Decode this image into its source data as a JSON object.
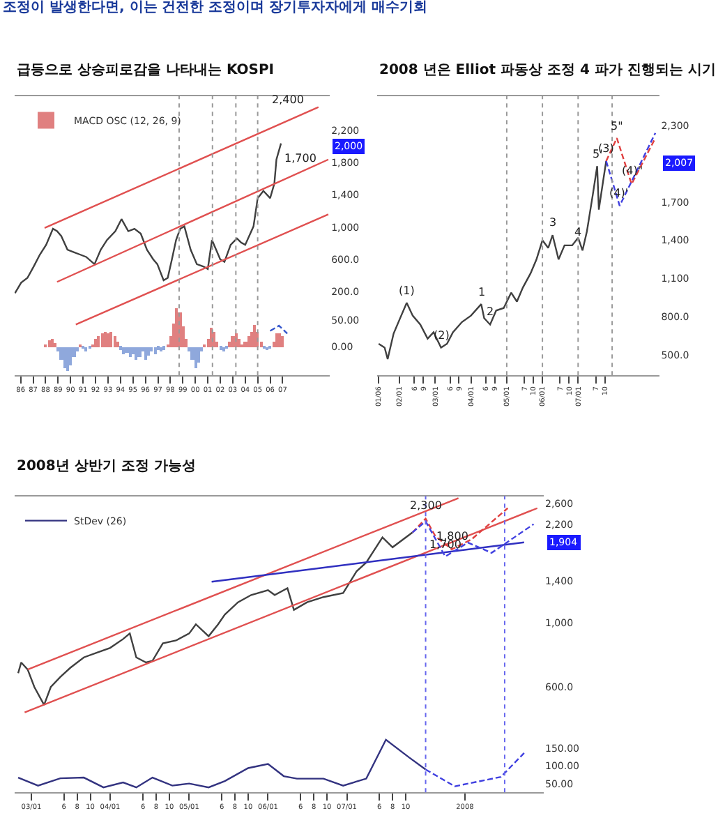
{
  "chart_data": [
    {
      "type": "line",
      "title": "급등으로 상승피로감을 나타내는 KOSPI",
      "annotations": [
        "조정이 발생한다면, 이는 건전한 조정이며 장기투자자에게 매수기회",
        {
          "text": "2,400",
          "x": "2007-11-15",
          "y": 2420
        },
        {
          "text": "1,700",
          "x": "2008-12-01",
          "y": 1700
        },
        {
          "text": "2,000",
          "y": 2000
        }
      ],
      "series": [
        {
          "color": "#404040",
          "x": [
            "1986-01-15",
            "1986-07-15",
            "1987-01-15",
            "1987-07-15",
            "1988-01-15",
            "1988-07-15",
            "1989-02-01",
            "1989-06-01",
            "1989-10-01",
            "1990-04-01",
            "1990-10-01",
            "1991-04-01",
            "1991-10-01",
            "1992-06-01",
            "1992-12-01",
            "1993-06-01",
            "1994-02-01",
            "1994-08-01",
            "1995-02-15",
            "1995-08-15",
            "1996-02-15",
            "1996-08-15",
            "1997-02-15",
            "1997-06-15",
            "1997-12-15",
            "1998-04-15",
            "1998-08-15",
            "1998-12-15",
            "1999-04-15",
            "1999-08-15",
            "2000-02-15",
            "2000-08-15",
            "2001-03-01",
            "2001-07-01",
            "2001-11-01",
            "2002-03-01",
            "2002-07-01",
            "2002-11-01",
            "2003-05-01",
            "2003-11-01",
            "2004-03-01",
            "2004-07-01",
            "2005-03-01",
            "2005-07-01",
            "2005-12-15",
            "2006-07-01",
            "2006-11-01",
            "2007-01-01",
            "2007-05-15"
          ],
          "values": [
            180,
            310,
            370,
            510,
            660,
            780,
            980,
            950,
            890,
            720,
            690,
            660,
            630,
            540,
            720,
            840,
            950,
            1100,
            950,
            980,
            920,
            720,
            600,
            540,
            340,
            370,
            600,
            840,
            980,
            1010,
            720,
            540,
            510,
            480,
            840,
            720,
            600,
            570,
            780,
            860,
            810,
            780,
            1010,
            1360,
            1450,
            1360,
            1540,
            1840,
            2040
          ]
        },
        {
          "color": "#e05050",
          "x": [
            "1988-06-01",
            "2010-05-15"
          ],
          "values": [
            990,
            2490
          ]
        },
        {
          "color": "#e05050",
          "x": [
            "1989-06-01",
            "2011-03-01"
          ],
          "values": [
            320,
            1840
          ]
        },
        {
          "color": "#e05050",
          "x": [
            "1990-12-01",
            "2011-03-01"
          ],
          "values": [
            -210,
            1160
          ]
        }
      ],
      "xlim": [
        "1986-01-01",
        "2011-04-15"
      ],
      "ylim": [
        -840,
        2630
      ],
      "yticks": [
        {
          "value": 200,
          "label": "200.0"
        },
        {
          "value": 600,
          "label": "600.0"
        },
        {
          "value": 1000,
          "label": "1,000"
        },
        {
          "value": 1400,
          "label": "1,400"
        },
        {
          "value": 1800,
          "label": "1,800"
        },
        {
          "value": 2200,
          "label": "2,200"
        }
      ],
      "tick_labels": "y",
      "ref_lines": [
        {
          "axis": "x",
          "value": "1999-03-15",
          "color": "#999999",
          "line_style": "dotted"
        },
        {
          "axis": "x",
          "value": "2001-11-15",
          "color": "#999999",
          "line_style": "dotted"
        },
        {
          "axis": "x",
          "value": "2003-10-01",
          "color": "#999999",
          "line_style": "dotted"
        },
        {
          "axis": "x",
          "value": "2005-07-01",
          "color": "#999999",
          "line_style": "dotted"
        }
      ]
    },
    {
      "type": "bar",
      "legend": "top left",
      "series": [
        {
          "name": "MACD OSC (12, 26, 9)",
          "x": [
            "1988-07-01",
            "1988-10-01",
            "1989-01-01",
            "1989-04-01",
            "1989-07-01",
            "1989-10-01",
            "1990-01-01",
            "1990-04-01",
            "1990-07-01",
            "1990-10-01",
            "1991-01-01",
            "1991-04-01",
            "1991-07-01",
            "1991-10-01",
            "1992-01-01",
            "1992-04-01",
            "1992-07-01",
            "1992-10-01",
            "1993-01-01",
            "1993-04-01",
            "1993-07-01",
            "1993-10-01",
            "1994-01-01",
            "1994-04-01",
            "1994-07-01",
            "1994-10-01",
            "1995-01-01",
            "1995-04-01",
            "1995-07-01",
            "1995-10-01",
            "1996-01-01",
            "1996-04-01",
            "1996-07-01",
            "1996-10-01",
            "1997-01-01",
            "1997-04-01",
            "1997-07-01",
            "1997-10-01",
            "1998-01-01",
            "1998-04-01",
            "1998-07-01",
            "1998-10-01",
            "1999-01-01",
            "1999-04-01",
            "1999-07-01",
            "1999-10-01",
            "2000-01-01",
            "2000-04-01",
            "2000-07-01",
            "2000-10-01",
            "2001-01-01",
            "2001-04-01",
            "2001-07-01",
            "2001-10-01",
            "2002-01-01",
            "2002-04-01",
            "2002-07-01",
            "2002-10-01",
            "2003-01-01",
            "2003-04-01",
            "2003-07-01",
            "2003-10-01",
            "2004-01-01",
            "2004-04-01",
            "2004-07-01",
            "2004-10-01",
            "2005-01-01",
            "2005-04-01",
            "2005-07-01",
            "2005-10-01",
            "2006-01-01",
            "2006-04-01",
            "2006-07-01",
            "2006-10-01",
            "2007-01-01",
            "2007-04-01",
            "2007-07-01"
          ],
          "values": [
            5,
            12,
            15,
            8,
            -10,
            -25,
            -40,
            -45,
            -35,
            -20,
            -8,
            3,
            -3,
            -8,
            -3,
            5,
            15,
            22,
            25,
            30,
            25,
            28,
            20,
            10,
            -5,
            -15,
            -12,
            -20,
            -15,
            -25,
            -20,
            -10,
            -25,
            -18,
            -10,
            -15,
            -5,
            -10,
            -5,
            3,
            20,
            45,
            73,
            65,
            40,
            15,
            -10,
            -25,
            -41,
            -30,
            -10,
            5,
            15,
            36,
            30,
            10,
            -5,
            -10,
            -3,
            10,
            20,
            25,
            15,
            3,
            10,
            20,
            30,
            41,
            30,
            10,
            -3,
            -6,
            -4,
            10,
            25,
            27,
            20
          ],
          "colors": [
            "#e08080",
            "#e08080",
            "#e08080",
            "#e08080",
            "#8fa8dc",
            "#8fa8dc",
            "#8fa8dc",
            "#8fa8dc",
            "#8fa8dc",
            "#8fa8dc",
            "#8fa8dc",
            "#e08080",
            "#8fa8dc",
            "#8fa8dc",
            "#8fa8dc",
            "#e08080",
            "#e08080",
            "#e08080",
            "#e08080",
            "#e08080",
            "#e08080",
            "#e08080",
            "#e08080",
            "#e08080",
            "#8fa8dc",
            "#8fa8dc",
            "#8fa8dc",
            "#8fa8dc",
            "#8fa8dc",
            "#8fa8dc",
            "#8fa8dc",
            "#8fa8dc",
            "#8fa8dc",
            "#8fa8dc",
            "#8fa8dc",
            "#8fa8dc",
            "#8fa8dc",
            "#8fa8dc",
            "#8fa8dc",
            "#e08080",
            "#e08080",
            "#e08080",
            "#e08080",
            "#e08080",
            "#e08080",
            "#e08080",
            "#8fa8dc",
            "#8fa8dc",
            "#8fa8dc",
            "#8fa8dc",
            "#8fa8dc",
            "#e08080",
            "#e08080",
            "#e08080",
            "#e08080",
            "#e08080",
            "#8fa8dc",
            "#8fa8dc",
            "#8fa8dc",
            "#e08080",
            "#e08080",
            "#e08080",
            "#e08080",
            "#e08080",
            "#e08080",
            "#e08080",
            "#e08080",
            "#e08080",
            "#e08080",
            "#e08080",
            "#8fa8dc",
            "#8fa8dc",
            "#8fa8dc",
            "#e08080",
            "#e08080",
            "#e08080",
            "#e08080"
          ]
        },
        {
          "type": "line",
          "color": "#3355cc",
          "line_style": "dashed",
          "x": [
            "2006-07-01",
            "2007-03-15",
            "2007-11-15"
          ],
          "values": [
            30,
            40,
            25
          ]
        }
      ],
      "xlim": [
        "1986-01-01",
        "2011-04-15"
      ],
      "ylim": [
        -55,
        480
      ],
      "xticks": [
        {
          "value": "1986-07-01",
          "label": "86"
        },
        {
          "value": "1987-07-01",
          "label": "87"
        },
        {
          "value": "1988-07-01",
          "label": "88"
        },
        {
          "value": "1989-07-01",
          "label": "89"
        },
        {
          "value": "1990-07-01",
          "label": "90"
        },
        {
          "value": "1991-07-01",
          "label": "91"
        },
        {
          "value": "1992-07-01",
          "label": "92"
        },
        {
          "value": "1993-07-01",
          "label": "93"
        },
        {
          "value": "1994-07-01",
          "label": "94"
        },
        {
          "value": "1995-07-01",
          "label": "95"
        },
        {
          "value": "1996-07-01",
          "label": "96"
        },
        {
          "value": "1997-07-01",
          "label": "97"
        },
        {
          "value": "1998-07-01",
          "label": "98"
        },
        {
          "value": "1999-07-01",
          "label": "99"
        },
        {
          "value": "2000-07-01",
          "label": "00"
        },
        {
          "value": "2001-07-01",
          "label": "01"
        },
        {
          "value": "2002-07-01",
          "label": "02"
        },
        {
          "value": "2003-07-01",
          "label": "03"
        },
        {
          "value": "2004-07-01",
          "label": "04"
        },
        {
          "value": "2005-07-01",
          "label": "05"
        },
        {
          "value": "2006-07-01",
          "label": "06"
        },
        {
          "value": "2007-07-01",
          "label": "07"
        }
      ],
      "yticks": [
        {
          "value": 0,
          "label": "0.00"
        },
        {
          "value": 50,
          "label": "50.00"
        }
      ]
    },
    {
      "type": "line",
      "title": "2008 년은 Elliot 파동상 조정 4 파가 진행되는 시기",
      "annotations": [
        {
          "text": "(1)",
          "x": "2002-03-15",
          "y": 910
        },
        {
          "text": "(2)",
          "x": "2003-03-01",
          "y": 560
        },
        {
          "text": "1",
          "x": "2004-04-15",
          "y": 900
        },
        {
          "text": "2",
          "x": "2004-07-15",
          "y": 740
        },
        {
          "text": "3",
          "x": "2006-04-15",
          "y": 1440
        },
        {
          "text": "4",
          "x": "2007-01-01",
          "y": 1360
        },
        {
          "text": "5'",
          "x": "2007-07-15",
          "y": 1980
        },
        {
          "text": "(3)",
          "x": "2007-10-15",
          "y": 2020
        },
        {
          "text": "5\"",
          "x": "2008-02-01",
          "y": 2200
        },
        {
          "text": "(4)'",
          "x": "2008-03-01",
          "y": 1670
        },
        {
          "text": "(4)\"",
          "x": "2008-07-01",
          "y": 1840
        },
        {
          "text": "2,007",
          "y": 2007
        }
      ],
      "series": [
        {
          "color": "#404040",
          "x": [
            "2001-06-01",
            "2001-08-01",
            "2001-09-01",
            "2001-11-01",
            "2002-01-01",
            "2002-03-15",
            "2002-05-15",
            "2002-08-01",
            "2002-10-15",
            "2002-12-15",
            "2003-03-01",
            "2003-05-01",
            "2003-07-01",
            "2003-10-01",
            "2004-01-01",
            "2004-04-15",
            "2004-05-15",
            "2004-07-15",
            "2004-09-15",
            "2004-12-01",
            "2005-02-15",
            "2005-04-15",
            "2005-06-15",
            "2005-09-01",
            "2005-11-01",
            "2006-01-01",
            "2006-03-01",
            "2006-04-15",
            "2006-06-15",
            "2006-08-15",
            "2006-11-01",
            "2007-01-01",
            "2007-02-15",
            "2007-04-01",
            "2007-06-01",
            "2007-07-15",
            "2007-08-01",
            "2007-09-15",
            "2007-10-15"
          ],
          "values": [
            590,
            560,
            470,
            670,
            780,
            910,
            810,
            740,
            630,
            680,
            560,
            590,
            680,
            760,
            810,
            900,
            790,
            740,
            850,
            870,
            990,
            920,
            1030,
            1140,
            1250,
            1400,
            1340,
            1440,
            1250,
            1360,
            1360,
            1420,
            1320,
            1470,
            1760,
            1980,
            1640,
            1870,
            2020
          ]
        },
        {
          "color": "#e04040",
          "line_style": "dashed",
          "x": [
            "2007-10-15",
            "2008-02-01",
            "2008-07-01",
            "2009-03-01"
          ],
          "values": [
            2020,
            2200,
            1840,
            2200
          ]
        },
        {
          "color": "#4040e0",
          "line_style": "dashed",
          "x": [
            "2007-10-15",
            "2008-03-01",
            "2009-03-01"
          ],
          "values": [
            2020,
            1670,
            2240
          ]
        }
      ],
      "xlim": [
        "2001-05-15",
        "2009-04-15"
      ],
      "ylim": [
        343,
        2530
      ],
      "xticks": [
        {
          "value": "2001-06-01",
          "label": "01/06"
        },
        {
          "value": "2002-01-01",
          "label": "02/01"
        },
        {
          "value": "2002-06-01",
          "label": "6"
        },
        {
          "value": "2002-09-01",
          "label": "9"
        },
        {
          "value": "2003-01-01",
          "label": "03/01"
        },
        {
          "value": "2003-06-01",
          "label": "6"
        },
        {
          "value": "2003-09-01",
          "label": "9"
        },
        {
          "value": "2004-01-01",
          "label": "04/01"
        },
        {
          "value": "2004-06-01",
          "label": "6"
        },
        {
          "value": "2004-09-01",
          "label": "9"
        },
        {
          "value": "2005-01-01",
          "label": "05/01"
        },
        {
          "value": "2005-07-01",
          "label": "7"
        },
        {
          "value": "2005-10-01",
          "label": "10"
        },
        {
          "value": "2006-01-01",
          "label": "06/01"
        },
        {
          "value": "2006-07-01",
          "label": "7"
        },
        {
          "value": "2006-10-01",
          "label": "10"
        },
        {
          "value": "2007-01-01",
          "label": "07/01"
        },
        {
          "value": "2007-07-01",
          "label": "7"
        },
        {
          "value": "2007-10-01",
          "label": "10"
        }
      ],
      "yticks": [
        {
          "value": 500,
          "label": "500.0"
        },
        {
          "value": 800,
          "label": "800.0"
        },
        {
          "value": 1100,
          "label": "1,100"
        },
        {
          "value": 1400,
          "label": "1,400"
        },
        {
          "value": 1700,
          "label": "1,700"
        },
        {
          "value": 2300,
          "label": "2,300"
        }
      ],
      "ref_lines": [
        {
          "axis": "x",
          "value": "2005-01-01",
          "color": "#999999",
          "line_style": "dotted"
        },
        {
          "axis": "x",
          "value": "2006-01-01",
          "color": "#999999",
          "line_style": "dotted"
        },
        {
          "axis": "x",
          "value": "2007-01-01",
          "color": "#999999",
          "line_style": "dotted"
        },
        {
          "axis": "x",
          "value": "2007-12-15",
          "color": "#999999",
          "line_style": "dotted"
        }
      ]
    },
    {
      "type": "line",
      "title": "2008년 상반기 조정 가능성",
      "log": "y",
      "annotations": [
        {
          "text": "2,300",
          "x": "2008-01-01",
          "y": 2300
        },
        {
          "text": "1,800",
          "x": "2008-05-01",
          "y": 1800
        },
        {
          "text": "1,700",
          "x": "2008-04-01",
          "y": 1700
        },
        {
          "text": "1,904",
          "y": 1904
        }
      ],
      "series": [
        {
          "color": "#404040",
          "x": [
            "2002-11-01",
            "2002-11-15",
            "2002-12-15",
            "2003-01-15",
            "2003-03-01",
            "2003-04-01",
            "2003-05-15",
            "2003-07-01",
            "2003-09-01",
            "2003-11-01",
            "2004-01-01",
            "2004-03-01",
            "2004-04-01",
            "2004-05-01",
            "2004-06-15",
            "2004-07-15",
            "2004-09-01",
            "2004-11-01",
            "2005-01-01",
            "2005-02-01",
            "2005-04-01",
            "2005-05-15",
            "2005-06-15",
            "2005-08-15",
            "2005-10-15",
            "2006-01-01",
            "2006-02-01",
            "2006-04-01",
            "2006-05-01",
            "2006-07-01",
            "2006-09-15",
            "2006-12-15",
            "2007-02-15",
            "2007-04-01",
            "2007-06-15",
            "2007-08-01",
            "2007-11-01"
          ],
          "values": [
            670,
            730,
            690,
            600,
            520,
            600,
            650,
            700,
            760,
            790,
            820,
            880,
            920,
            760,
            730,
            740,
            850,
            870,
            920,
            990,
            900,
            990,
            1070,
            1180,
            1250,
            1300,
            1250,
            1320,
            1110,
            1180,
            1230,
            1270,
            1510,
            1620,
            1980,
            1830,
            2060
          ]
        },
        {
          "color": "#e05050",
          "x": [
            "2002-12-15",
            "2008-06-01"
          ],
          "values": [
            690,
            2710
          ]
        },
        {
          "color": "#e05050",
          "x": [
            "2002-12-01",
            "2009-06-01"
          ],
          "values": [
            490,
            2500
          ]
        },
        {
          "color": "#3030c0",
          "x": [
            "2005-04-15",
            "2009-04-01"
          ],
          "values": [
            1390,
            1904
          ]
        },
        {
          "color": "#e04040",
          "line_style": "dashed",
          "x": [
            "2007-11-01",
            "2008-01-01",
            "2008-02-15",
            "2008-05-01",
            "2008-08-01",
            "2009-01-15"
          ],
          "values": [
            2060,
            2300,
            2000,
            1800,
            1950,
            2500
          ]
        },
        {
          "color": "#4040e0",
          "line_style": "dashed",
          "x": [
            "2007-11-01",
            "2008-01-01",
            "2008-04-01",
            "2008-07-15",
            "2008-11-01",
            "2009-05-15"
          ],
          "values": [
            2060,
            2250,
            1700,
            1900,
            1750,
            2200
          ]
        }
      ],
      "xlim": [
        "2002-10-15",
        "2009-07-01"
      ],
      "ylim": [
        259,
        2750
      ],
      "xticks": [
        {
          "value": "2003-01-01",
          "label": "03/01"
        },
        {
          "value": "2003-06-01",
          "label": "6"
        },
        {
          "value": "2003-08-01",
          "label": "8"
        },
        {
          "value": "2003-10-01",
          "label": "10"
        },
        {
          "value": "2004-01-01",
          "label": "04/01"
        },
        {
          "value": "2004-06-01",
          "label": "6"
        },
        {
          "value": "2004-08-01",
          "label": "8"
        },
        {
          "value": "2004-10-01",
          "label": "10"
        },
        {
          "value": "2005-01-01",
          "label": "05/01"
        },
        {
          "value": "2005-06-01",
          "label": "6"
        },
        {
          "value": "2005-08-01",
          "label": "8"
        },
        {
          "value": "2005-10-01",
          "label": "10"
        },
        {
          "value": "2006-01-01",
          "label": "06/01"
        },
        {
          "value": "2006-06-01",
          "label": "6"
        },
        {
          "value": "2006-08-01",
          "label": "8"
        },
        {
          "value": "2006-10-01",
          "label": "10"
        },
        {
          "value": "2007-01-01",
          "label": "07/01"
        },
        {
          "value": "2007-06-01",
          "label": "6"
        },
        {
          "value": "2007-08-01",
          "label": "8"
        },
        {
          "value": "2007-10-01",
          "label": "10"
        },
        {
          "value": "2008-07-01",
          "label": "2008"
        }
      ],
      "yticks": [
        {
          "value": 600,
          "label": "600.0"
        },
        {
          "value": 1000,
          "label": "1,000"
        },
        {
          "value": 1400,
          "label": "1,400"
        },
        {
          "value": 2200,
          "label": "2,200"
        },
        {
          "value": 2600,
          "label": "2,600"
        }
      ],
      "ref_lines": [
        {
          "axis": "x",
          "value": "2008-01-01",
          "color": "#6666ee",
          "line_style": "dotted"
        },
        {
          "axis": "x",
          "value": "2009-01-01",
          "color": "#6666ee",
          "line_style": "dotted"
        }
      ]
    },
    {
      "type": "line",
      "legend": "top left",
      "series": [
        {
          "name": "StDev (26)",
          "color": "#333380",
          "x": [
            "2002-11-01",
            "2003-02-01",
            "2003-05-15",
            "2003-09-01",
            "2003-12-01",
            "2004-03-01",
            "2004-05-01",
            "2004-07-15",
            "2004-10-15",
            "2005-01-01",
            "2005-04-01",
            "2005-06-15",
            "2005-10-01",
            "2006-01-01",
            "2006-03-15",
            "2006-05-15",
            "2006-09-15",
            "2006-12-15",
            "2007-04-01",
            "2007-07-01",
            "2007-10-15",
            "2008-01-01"
          ],
          "values": [
            67,
            44,
            65,
            67,
            39,
            53,
            39,
            67,
            44,
            50,
            39,
            57,
            94,
            106,
            71,
            64,
            64,
            44,
            64,
            175,
            125,
            90
          ]
        },
        {
          "color": "#4040e0",
          "line_style": "dashed",
          "x": [
            "2008-01-01",
            "2008-05-15",
            "2008-12-15",
            "2009-04-01"
          ],
          "values": [
            90,
            42,
            69,
            137
          ]
        }
      ],
      "xlim": [
        "2002-10-15",
        "2009-07-01"
      ],
      "ylim": [
        25,
        869
      ],
      "tick_labels": "y",
      "yticks": [
        {
          "value": 50,
          "label": "50.00"
        },
        {
          "value": 100,
          "label": "100.00"
        },
        {
          "value": 150,
          "label": "150.00"
        }
      ]
    }
  ]
}
